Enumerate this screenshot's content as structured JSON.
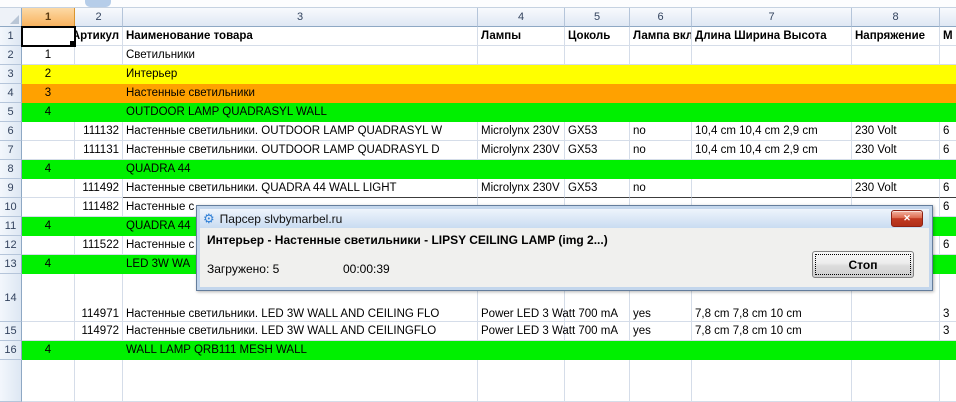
{
  "window": {
    "app_hint": "spreadsheet"
  },
  "grid": {
    "column_headers": [
      "1",
      "2",
      "3",
      "4",
      "5",
      "6",
      "7",
      "8",
      ""
    ],
    "rows": [
      {
        "num": "1",
        "bg": "white",
        "style": "header",
        "cells": [
          "",
          "Артикул",
          "Наименование товара",
          "Лампы",
          "Цоколь",
          "Лампа вкл",
          "Длина Ширина Высота",
          "Напряжение",
          "М"
        ]
      },
      {
        "num": "2",
        "bg": "white",
        "cells": [
          "1",
          "",
          "Светильники",
          "",
          "",
          "",
          "",
          "",
          ""
        ]
      },
      {
        "num": "3",
        "bg": "yellow",
        "cells": [
          "2",
          "",
          "Интерьер",
          "",
          "",
          "",
          "",
          "",
          ""
        ]
      },
      {
        "num": "4",
        "bg": "orange",
        "cells": [
          "3",
          "",
          "Настенные светильники",
          "",
          "",
          "",
          "",
          "",
          ""
        ]
      },
      {
        "num": "5",
        "bg": "green",
        "cells": [
          "4",
          "",
          "OUTDOOR LAMP QUADRASYL WALL",
          "",
          "",
          "",
          "",
          "",
          ""
        ]
      },
      {
        "num": "6",
        "bg": "white",
        "cells": [
          "",
          "111132",
          "Настенные светильники. OUTDOOR LAMP QUADRASYL W",
          "Microlynx 230V",
          "GX53",
          "no",
          "10,4 cm 10,4 cm 2,9 cm",
          "230 Volt",
          "6"
        ]
      },
      {
        "num": "7",
        "bg": "white",
        "cells": [
          "",
          "111131",
          "Настенные светильники. OUTDOOR LAMP QUADRASYL D",
          "Microlynx 230V",
          "GX53",
          "no",
          "10,4 cm 10,4 cm 2,9 cm",
          "230 Volt",
          "6"
        ]
      },
      {
        "num": "8",
        "bg": "green",
        "cells": [
          "4",
          "",
          "QUADRA 44",
          "",
          "",
          "",
          "",
          "",
          ""
        ]
      },
      {
        "num": "9",
        "bg": "white",
        "cells": [
          "",
          "111492",
          "Настенные светильники. QUADRA 44 WALL LIGHT",
          "Microlynx 230V",
          "GX53",
          "no",
          "",
          "230 Volt",
          "6"
        ]
      },
      {
        "num": "10",
        "bg": "white",
        "cells": [
          "",
          "111482",
          "Настенные с",
          "",
          "",
          "",
          "",
          "",
          "6"
        ]
      },
      {
        "num": "11",
        "bg": "green",
        "cells": [
          "4",
          "",
          "QUADRA 44",
          "",
          "",
          "",
          "",
          "",
          ""
        ]
      },
      {
        "num": "12",
        "bg": "white",
        "cells": [
          "",
          "111522",
          "Настенные с",
          "",
          "",
          "",
          "",
          "",
          "6"
        ]
      },
      {
        "num": "13",
        "bg": "green",
        "cells": [
          "4",
          "",
          "LED 3W WA",
          "",
          "",
          "",
          "",
          "",
          ""
        ]
      },
      {
        "num": "14",
        "bg": "white",
        "cells": [
          "",
          "114971",
          "Настенные светильники. LED 3W WALL AND CEILING FLO",
          "Power LED 3 Watt 700 mA",
          "",
          "yes",
          "7,8 cm 7,8 cm 10 cm",
          "",
          "3"
        ]
      },
      {
        "num": "15",
        "bg": "white",
        "cells": [
          "",
          "114972",
          "Настенные светильники. LED 3W WALL AND CEILINGFLO",
          "Power LED 3 Watt 700 mA",
          "",
          "yes",
          "7,8 cm 7,8 cm 10 cm",
          "",
          "3"
        ]
      },
      {
        "num": "16",
        "bg": "green",
        "cells": [
          "4",
          "",
          "WALL LAMP QRB111 MESH WALL",
          "",
          "",
          "",
          "",
          "",
          ""
        ]
      },
      {
        "num": "",
        "bg": "white",
        "cells": [
          "",
          "",
          "",
          "",
          "",
          "",
          "",
          "",
          ""
        ]
      }
    ]
  },
  "dialog": {
    "title": "Парсер slvbymarbel.ru",
    "message": "Интерьер - Настенные светильники - LIPSY CEILING LAMP (img 2...)",
    "loaded_label": "Загружено: 5",
    "elapsed": "00:00:39",
    "stop_label": "Стоп",
    "close_icon": "✕",
    "gear_icon": "⚙"
  },
  "colors": {
    "yellow": "#FFFF00",
    "orange": "#FFA100",
    "green": "#00F000",
    "white": "#FFFFFF",
    "selected_header_accent": "#F8B35F",
    "close_button_red": "#C23A22"
  }
}
